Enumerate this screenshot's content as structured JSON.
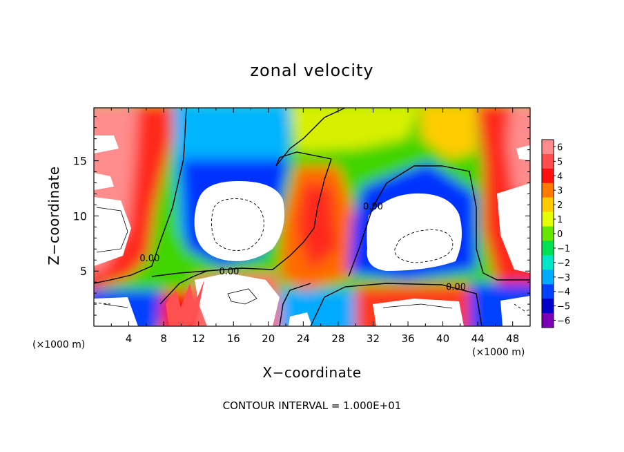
{
  "chart_data": {
    "type": "heatmap",
    "title": "zonal velocity",
    "xlabel": "X−coordinate",
    "ylabel": "Z−coordinate",
    "x_unit_left": "(×1000 m)",
    "x_unit_right": "(×1000 m)",
    "footer": "CONTOUR INTERVAL = 1.000E+01",
    "xlim": [
      0,
      50
    ],
    "ylim": [
      0,
      19.8
    ],
    "x_ticks": [
      4,
      8,
      12,
      16,
      20,
      24,
      28,
      32,
      36,
      40,
      44,
      48
    ],
    "x_tick_labels": [
      "4",
      "8",
      "12",
      "16",
      "20",
      "24",
      "28",
      "32",
      "36",
      "40",
      "44",
      "48"
    ],
    "y_ticks": [
      5,
      10,
      15
    ],
    "y_tick_labels": [
      "5",
      "10",
      "15"
    ],
    "colorbar": {
      "levels": [
        6,
        5,
        4,
        3,
        2,
        1,
        0,
        -1,
        -2,
        -3,
        -4,
        -5,
        -6
      ],
      "labels": [
        "6",
        "5",
        "4",
        "3",
        "2",
        "1",
        "0",
        "−1",
        "−2",
        "−3",
        "−4",
        "−5",
        "−6"
      ],
      "colors": [
        "#ff8c8c",
        "#ff4d4d",
        "#ff1010",
        "#ff7a00",
        "#ffcc00",
        "#e6ff00",
        "#66e600",
        "#00e050",
        "#00e6c8",
        "#00aaff",
        "#0040ff",
        "#0000c8",
        "#7a00b4"
      ]
    },
    "contour_labels": [
      {
        "text": "0.00",
        "x": 6.4,
        "y": 6.2
      },
      {
        "text": "0.00",
        "x": 15.5,
        "y": 5.0
      },
      {
        "text": "0.00",
        "x": 32.0,
        "y": 10.9
      },
      {
        "text": "0.00",
        "x": 41.5,
        "y": 3.6
      }
    ]
  }
}
